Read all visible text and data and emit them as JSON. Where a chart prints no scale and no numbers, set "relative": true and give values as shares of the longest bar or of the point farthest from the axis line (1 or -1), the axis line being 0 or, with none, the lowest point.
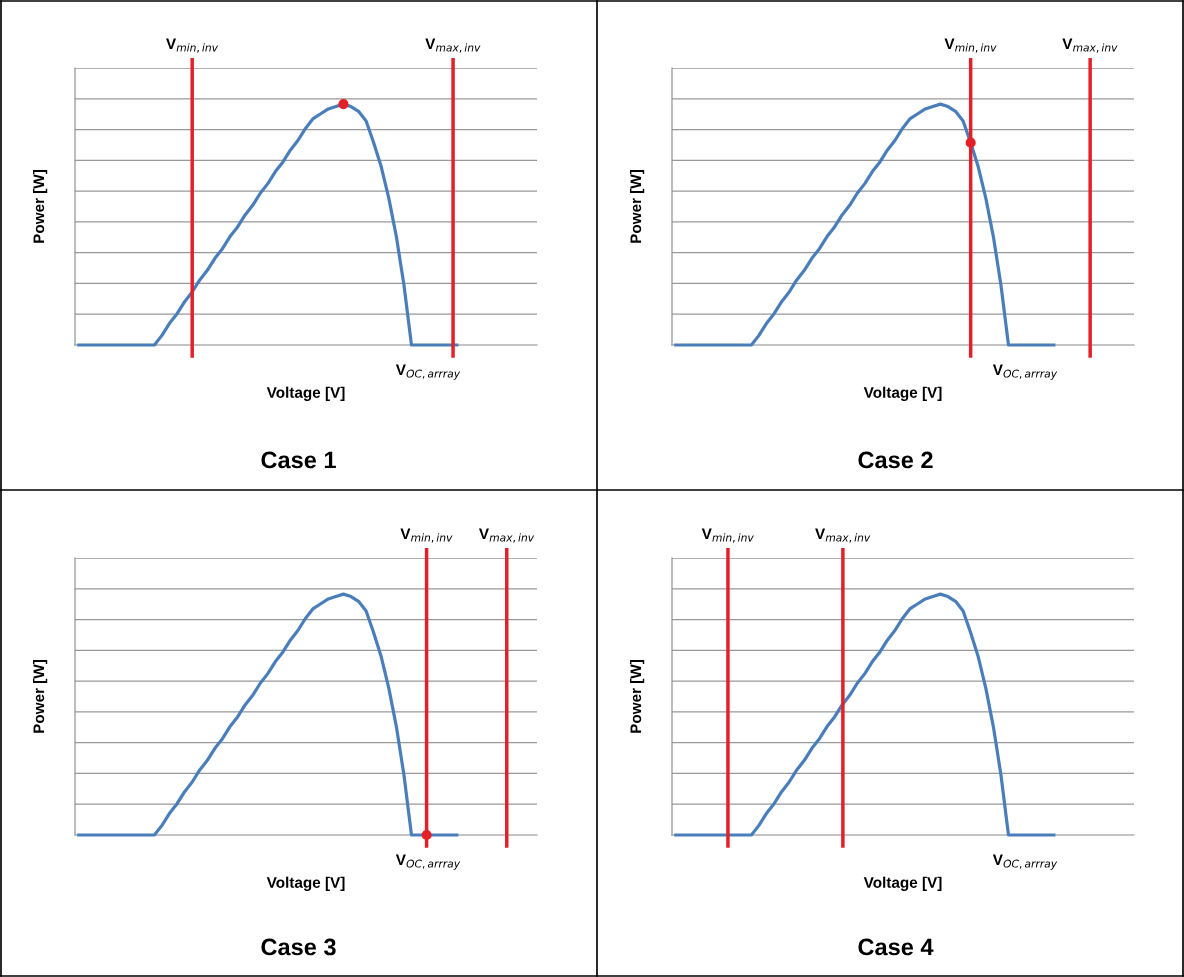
{
  "chart_data": [
    {
      "type": "line",
      "title": "Case 1",
      "xlabel": "Voltage [V]",
      "ylabel": "Power [W]",
      "relative": true,
      "grid": "y",
      "legend": false,
      "categories": [
        null,
        null,
        null,
        null,
        null,
        null,
        null,
        null,
        null,
        null,
        null,
        null,
        null,
        null,
        null,
        null,
        null,
        null,
        null,
        null,
        null,
        null,
        null,
        null,
        null,
        null,
        null,
        null,
        null,
        null,
        null,
        null,
        null,
        null,
        null,
        null,
        null,
        null,
        null,
        null,
        null,
        null,
        null,
        null,
        null,
        null,
        null,
        null,
        null,
        null,
        null
      ],
      "series": [
        {
          "color": "#4a7ebb",
          "values": [
            0,
            0,
            0,
            0,
            0,
            0,
            0,
            0,
            0,
            0,
            0,
            0.04,
            0.09,
            0.13,
            0.18,
            0.22,
            0.27,
            0.31,
            0.36,
            0.4,
            0.45,
            0.49,
            0.54,
            0.58,
            0.63,
            0.67,
            0.72,
            0.76,
            0.81,
            0.85,
            0.9,
            0.94,
            0.96,
            0.98,
            0.99,
            1,
            0.99,
            0.97,
            0.93,
            0.84,
            0.74,
            0.61,
            0.45,
            0.25,
            0,
            0,
            0,
            0,
            0,
            0,
            0
          ]
        }
      ],
      "annotations": [
        "V$_{min,inv}$",
        "V$_{max,inv}$",
        "V$_{OC,arrray}$"
      ]
    },
    {
      "type": "line",
      "title": "Case 2",
      "xlabel": "Voltage [V]",
      "ylabel": "Power [W]",
      "relative": true,
      "grid": "y",
      "legend": false,
      "categories": [
        null,
        null,
        null,
        null,
        null,
        null,
        null,
        null,
        null,
        null,
        null,
        null,
        null,
        null,
        null,
        null,
        null,
        null,
        null,
        null,
        null,
        null,
        null,
        null,
        null,
        null,
        null,
        null,
        null,
        null,
        null,
        null,
        null,
        null,
        null,
        null,
        null,
        null,
        null,
        null,
        null,
        null,
        null,
        null,
        null,
        null,
        null,
        null,
        null,
        null,
        null
      ],
      "series": [
        {
          "color": "#4a7ebb",
          "values": [
            0,
            0,
            0,
            0,
            0,
            0,
            0,
            0,
            0,
            0,
            0,
            0.04,
            0.09,
            0.13,
            0.18,
            0.22,
            0.27,
            0.31,
            0.36,
            0.4,
            0.45,
            0.49,
            0.54,
            0.58,
            0.63,
            0.67,
            0.72,
            0.76,
            0.81,
            0.85,
            0.9,
            0.94,
            0.96,
            0.98,
            0.99,
            1,
            0.99,
            0.97,
            0.93,
            0.84,
            0.74,
            0.61,
            0.45,
            0.25,
            0,
            0,
            0,
            0,
            0,
            0,
            0
          ]
        }
      ],
      "annotations": [
        "V$_{min,inv}$",
        "V$_{max,inv}$",
        "V$_{OC,arrray}$"
      ]
    },
    {
      "type": "line",
      "title": "Case 3",
      "xlabel": "Voltage [V]",
      "ylabel": "Power [W]",
      "relative": true,
      "grid": "y",
      "legend": false,
      "categories": [
        null,
        null,
        null,
        null,
        null,
        null,
        null,
        null,
        null,
        null,
        null,
        null,
        null,
        null,
        null,
        null,
        null,
        null,
        null,
        null,
        null,
        null,
        null,
        null,
        null,
        null,
        null,
        null,
        null,
        null,
        null,
        null,
        null,
        null,
        null,
        null,
        null,
        null,
        null,
        null,
        null,
        null,
        null,
        null,
        null,
        null,
        null,
        null,
        null,
        null,
        null
      ],
      "series": [
        {
          "color": "#4a7ebb",
          "values": [
            0,
            0,
            0,
            0,
            0,
            0,
            0,
            0,
            0,
            0,
            0,
            0.04,
            0.09,
            0.13,
            0.18,
            0.22,
            0.27,
            0.31,
            0.36,
            0.4,
            0.45,
            0.49,
            0.54,
            0.58,
            0.63,
            0.67,
            0.72,
            0.76,
            0.81,
            0.85,
            0.9,
            0.94,
            0.96,
            0.98,
            0.99,
            1,
            0.99,
            0.97,
            0.93,
            0.84,
            0.74,
            0.61,
            0.45,
            0.25,
            0,
            0,
            0,
            0,
            0,
            0,
            0
          ]
        }
      ],
      "annotations": [
        "V$_{min,inv}$",
        "V$_{max,inv}$",
        "V$_{OC,arrray}$"
      ]
    },
    {
      "type": "line",
      "title": "Case 4",
      "xlabel": "Voltage [V]",
      "ylabel": "Power [W]",
      "relative": true,
      "grid": "y",
      "legend": false,
      "categories": [
        null,
        null,
        null,
        null,
        null,
        null,
        null,
        null,
        null,
        null,
        null,
        null,
        null,
        null,
        null,
        null,
        null,
        null,
        null,
        null,
        null,
        null,
        null,
        null,
        null,
        null,
        null,
        null,
        null,
        null,
        null,
        null,
        null,
        null,
        null,
        null,
        null,
        null,
        null,
        null,
        null,
        null,
        null,
        null,
        null,
        null,
        null,
        null,
        null,
        null,
        null
      ],
      "series": [
        {
          "color": "#4a7ebb",
          "values": [
            0,
            0,
            0,
            0,
            0,
            0,
            0,
            0,
            0,
            0,
            0,
            0.04,
            0.09,
            0.13,
            0.18,
            0.22,
            0.27,
            0.31,
            0.36,
            0.4,
            0.45,
            0.49,
            0.54,
            0.58,
            0.63,
            0.67,
            0.72,
            0.76,
            0.81,
            0.85,
            0.9,
            0.94,
            0.96,
            0.98,
            0.99,
            1,
            0.99,
            0.97,
            0.93,
            0.84,
            0.74,
            0.61,
            0.45,
            0.25,
            0,
            0,
            0,
            0,
            0,
            0,
            0
          ]
        }
      ],
      "annotations": [
        "V$_{min,inv}$",
        "V$_{max,inv}$",
        "V$_{OC,arrray}$"
      ]
    }
  ]
}
